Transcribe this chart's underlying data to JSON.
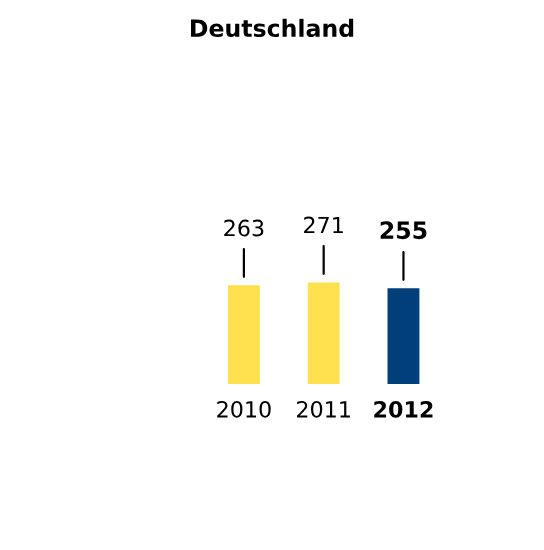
{
  "chart_data": {
    "type": "bar",
    "title": "Deutschland",
    "categories": [
      "2010",
      "2011",
      "2012"
    ],
    "values": [
      263,
      271,
      255
    ],
    "colors": [
      "#ffe14f",
      "#ffe14f",
      "#003f7a"
    ],
    "data_labels": true
  }
}
